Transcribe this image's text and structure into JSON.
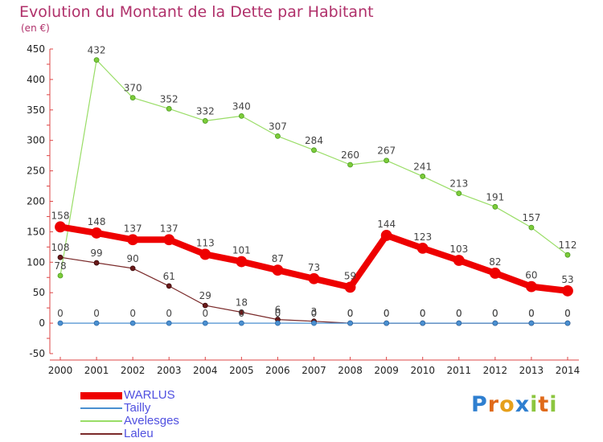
{
  "header": {
    "title": "Evolution du Montant de la Dette par Habitant",
    "subtitle": "(en €)"
  },
  "colors": {
    "title": "#b0306a",
    "warlus": "#ee0000",
    "tailly": "#4a8fd0",
    "avelesges": "#99dd66",
    "laleu": "#7a2a2a",
    "legend_text": "#5050e0"
  },
  "logo": {
    "text": "Proxiti",
    "letters": [
      {
        "ch": "P",
        "color": "#2f7fd0"
      },
      {
        "ch": "r",
        "color": "#e06a1a"
      },
      {
        "ch": "o",
        "color": "#e6a01c"
      },
      {
        "ch": "x",
        "color": "#2f7fd0"
      },
      {
        "ch": "i",
        "color": "#8cc63f"
      },
      {
        "ch": "t",
        "color": "#e06a1a"
      },
      {
        "ch": "i",
        "color": "#8cc63f"
      }
    ]
  },
  "chart_data": {
    "type": "line",
    "title": "Evolution du Montant de la Dette par Habitant",
    "subtitle": "(en €)",
    "xlabel": "",
    "ylabel": "",
    "x": [
      "2000",
      "2001",
      "2002",
      "2003",
      "2004",
      "2005",
      "2006",
      "2007",
      "2008",
      "2009",
      "2010",
      "2011",
      "2012",
      "2013",
      "2014"
    ],
    "ylim": [
      -50,
      450
    ],
    "yticks": [
      -50,
      0,
      50,
      100,
      150,
      200,
      250,
      300,
      350,
      400,
      450
    ],
    "grid": false,
    "legend_position": "bottom-left",
    "series": [
      {
        "name": "WARLUS",
        "color": "#ee0000",
        "values": [
          158,
          148,
          137,
          137,
          113,
          101,
          87,
          73,
          59,
          144,
          123,
          103,
          82,
          60,
          53
        ],
        "labels": [
          "158",
          "148",
          "137",
          "137",
          "113",
          "101",
          "87",
          "73",
          "59",
          "144",
          "123",
          "103",
          "82",
          "60",
          "53"
        ]
      },
      {
        "name": "Tailly",
        "color": "#4a8fd0",
        "values": [
          0,
          0,
          0,
          0,
          0,
          0,
          0,
          0,
          0,
          0,
          0,
          0,
          0,
          0,
          0
        ],
        "labels": [
          "0",
          "0",
          "0",
          "0",
          "0",
          "0",
          "0",
          "0",
          "0",
          "0",
          "0",
          "0",
          "0",
          "0",
          "0"
        ]
      },
      {
        "name": "Avelesges",
        "color": "#99dd66",
        "values": [
          78,
          432,
          370,
          352,
          332,
          340,
          307,
          284,
          260,
          267,
          241,
          213,
          191,
          157,
          112
        ],
        "labels": [
          "78",
          "432",
          "370",
          "352",
          "332",
          "340",
          "307",
          "284",
          "260",
          "267",
          "241",
          "213",
          "191",
          "157",
          "112"
        ]
      },
      {
        "name": "Laleu",
        "color": "#7a2a2a",
        "values": [
          108,
          99,
          90,
          61,
          29,
          18,
          6,
          3,
          0,
          0,
          0,
          0,
          0,
          0,
          0
        ],
        "labels": [
          "108",
          "99",
          "90",
          "61",
          "29",
          "18",
          "6",
          "3",
          "0",
          "0",
          "0",
          "0",
          "0",
          "0",
          "0"
        ]
      }
    ]
  }
}
